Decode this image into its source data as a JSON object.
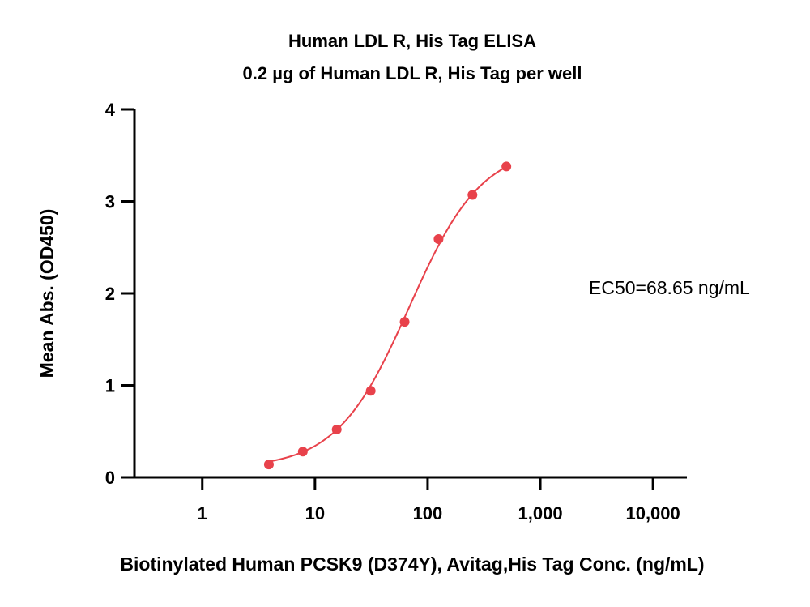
{
  "chart_data": {
    "type": "scatter",
    "title": "Human LDL R, His Tag ELISA",
    "subtitle": "0.2 µg of Human LDL R, His Tag per well",
    "xlabel": "Biotinylated Human PCSK9 (D374Y), Avitag,His Tag Conc. (ng/mL)",
    "ylabel": "Mean Abs. (OD450)",
    "x_scale": "log",
    "xlim": [
      0.25,
      20000
    ],
    "ylim": [
      0,
      4
    ],
    "x_ticks": [
      1,
      10,
      100,
      1000,
      10000
    ],
    "x_tick_labels": [
      "1",
      "10",
      "100",
      "1,000",
      "10,000"
    ],
    "y_ticks": [
      0,
      1,
      2,
      3,
      4
    ],
    "y_tick_labels": [
      "0",
      "1",
      "2",
      "3",
      "4"
    ],
    "grid": false,
    "annotation": "EC50=68.65 ng/mL",
    "color": "#e8424b",
    "series": [
      {
        "x": [
          3.9,
          7.8,
          15.6,
          31.25,
          62.5,
          125,
          250,
          500
        ],
        "y": [
          0.14,
          0.28,
          0.52,
          0.94,
          1.69,
          2.59,
          3.07,
          3.38
        ]
      }
    ],
    "fit": {
      "model": "4PL",
      "bottom": 0.1,
      "top": 3.6,
      "ec50": 68.65,
      "hill": 1.35
    }
  }
}
